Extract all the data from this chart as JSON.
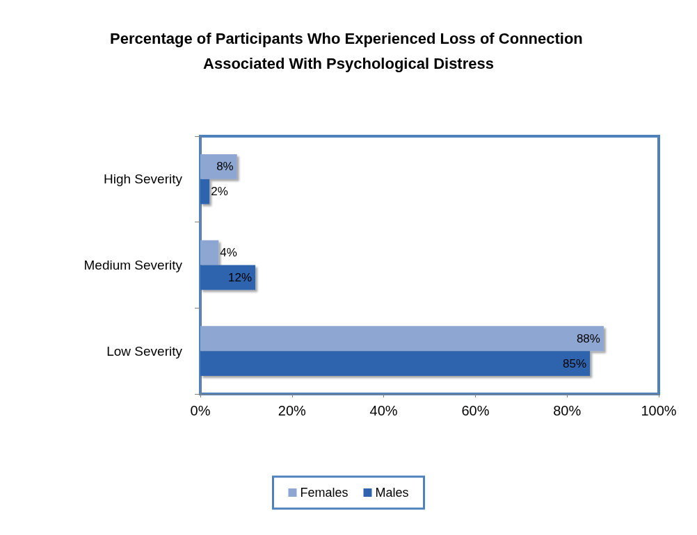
{
  "chart_data": {
    "type": "bar",
    "orientation": "horizontal",
    "title": "Percentage of Participants Who Experienced Loss of Connection Associated With Psychological Distress",
    "categories": [
      "High Severity",
      "Medium Severity",
      "Low Severity"
    ],
    "series": [
      {
        "name": "Females",
        "color": "#8ea6d2",
        "values": [
          8,
          4,
          88
        ],
        "value_labels": [
          "8%",
          "4%",
          "88%"
        ]
      },
      {
        "name": "Males",
        "color": "#2f63ad",
        "values": [
          2,
          12,
          85
        ],
        "value_labels": [
          "2%",
          "12%",
          "85%"
        ]
      }
    ],
    "xlim": [
      0,
      100
    ],
    "xticks": [
      {
        "value": 0,
        "label": "0%"
      },
      {
        "value": 20,
        "label": "20%"
      },
      {
        "value": 40,
        "label": "40%"
      },
      {
        "value": 60,
        "label": "60%"
      },
      {
        "value": 80,
        "label": "80%"
      },
      {
        "value": 100,
        "label": "100%"
      }
    ],
    "grid": false,
    "legend": "bottom"
  }
}
